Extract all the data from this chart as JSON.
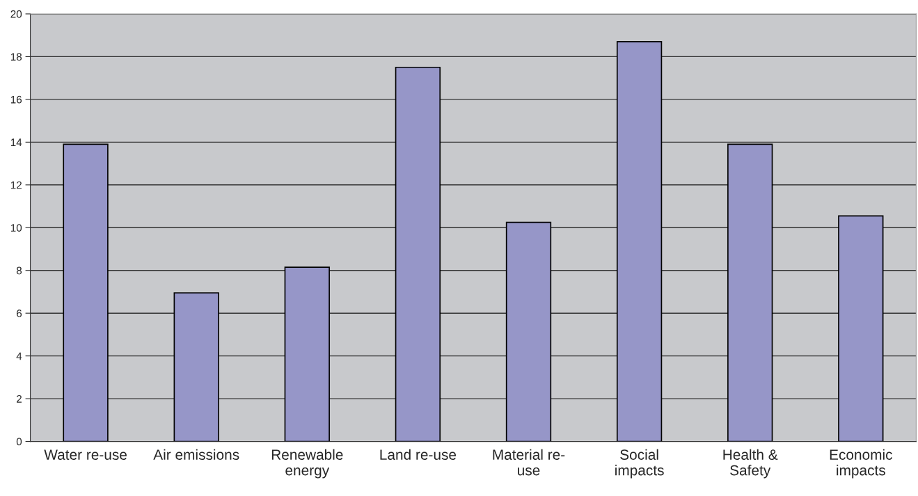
{
  "chart_data": {
    "type": "bar",
    "categories": [
      "Water re-use",
      "Air emissions",
      "Renewable\nenergy",
      "Land re-use",
      "Material re-\nuse",
      "Social\nimpacts",
      "Health &\nSafety",
      "Economic\nimpacts"
    ],
    "values": [
      13.9,
      6.95,
      8.15,
      17.5,
      10.25,
      18.7,
      13.9,
      10.55
    ],
    "color": "#9696c8",
    "ylim": [
      0,
      20
    ],
    "yticks": [
      0,
      2,
      4,
      6,
      8,
      10,
      12,
      14,
      16,
      18,
      20
    ],
    "grid": "y",
    "legend": false
  }
}
